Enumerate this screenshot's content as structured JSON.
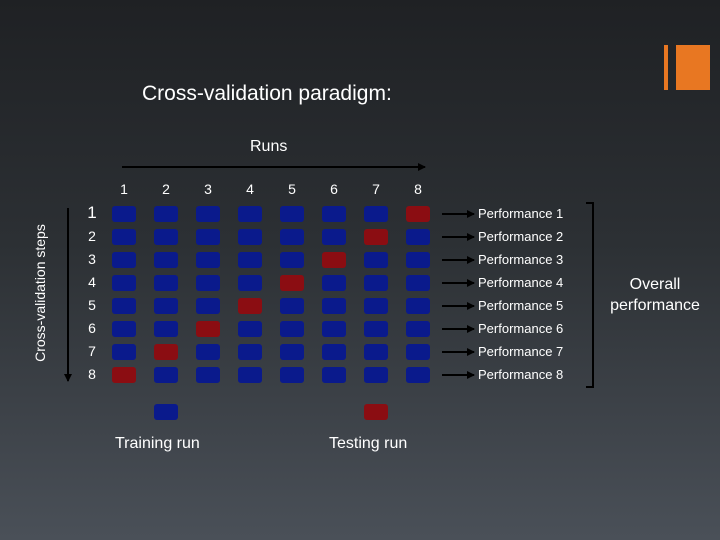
{
  "title": "Cross-validation paradigm:",
  "axis_runs_label": "Runs",
  "axis_steps_label": "Cross-validation steps",
  "run_labels": [
    "1",
    "2",
    "3",
    "4",
    "5",
    "6",
    "7",
    "8"
  ],
  "step_labels": [
    "1",
    "2",
    "3",
    "4",
    "5",
    "6",
    "7",
    "8"
  ],
  "test_run_by_step": [
    8,
    7,
    6,
    5,
    4,
    3,
    2,
    1
  ],
  "performance_labels": [
    "Performance 1",
    "Performance 2",
    "Performance 3",
    "Performance 4",
    "Performance 5",
    "Performance 6",
    "Performance 7",
    "Performance 8"
  ],
  "overall_label_lines": [
    "Overall",
    "performance"
  ],
  "legend": {
    "training_label": "Training run",
    "testing_label": "Testing run"
  },
  "colors": {
    "training": "#0a1a8c",
    "testing": "#8b0d12",
    "accent": "#e87722",
    "arrow": "#000000"
  }
}
